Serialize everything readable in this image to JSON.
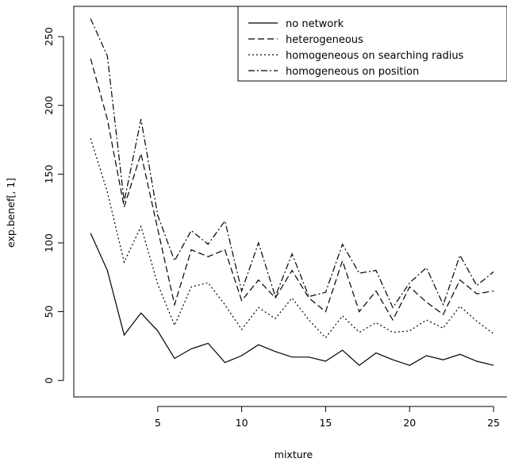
{
  "chart_data": {
    "type": "line",
    "title": "",
    "xlabel": "mixture",
    "ylabel": "exp.benef[, 1]",
    "xlim": [
      0,
      25.8
    ],
    "ylim": [
      -12,
      272
    ],
    "x": [
      1,
      2,
      3,
      4,
      5,
      6,
      7,
      8,
      9,
      10,
      11,
      12,
      13,
      14,
      15,
      16,
      17,
      18,
      19,
      20,
      21,
      22,
      23,
      24,
      25
    ],
    "x_ticks": [
      5,
      10,
      15,
      20,
      25
    ],
    "y_ticks": [
      0,
      50,
      100,
      150,
      200,
      250
    ],
    "legend_position": "top-right",
    "grid": false,
    "series": [
      {
        "name": "no network",
        "dash": "solid",
        "values": [
          107,
          80,
          33,
          49,
          36,
          16,
          23,
          27,
          13,
          18,
          26,
          21,
          17,
          17,
          14,
          22,
          11,
          20,
          15,
          11,
          18,
          15,
          19,
          14,
          11
        ]
      },
      {
        "name": "heterogeneous",
        "dash": "dashed",
        "values": [
          234,
          190,
          126,
          165,
          110,
          55,
          95,
          90,
          95,
          58,
          73,
          60,
          80,
          60,
          50,
          87,
          50,
          65,
          44,
          68,
          57,
          48,
          73,
          63,
          65
        ]
      },
      {
        "name": "homogeneous on searching radius",
        "dash": "dotted",
        "values": [
          176,
          137,
          86,
          112,
          70,
          40,
          68,
          71,
          55,
          37,
          53,
          45,
          60,
          44,
          31,
          47,
          35,
          42,
          35,
          36,
          44,
          38,
          54,
          43,
          34
        ]
      },
      {
        "name": "homogeneous on position",
        "dash": "dotdash",
        "values": [
          263,
          236,
          130,
          190,
          120,
          87,
          109,
          99,
          116,
          65,
          100,
          61,
          92,
          61,
          64,
          99,
          78,
          80,
          53,
          71,
          82,
          55,
          91,
          69,
          79
        ]
      }
    ]
  }
}
